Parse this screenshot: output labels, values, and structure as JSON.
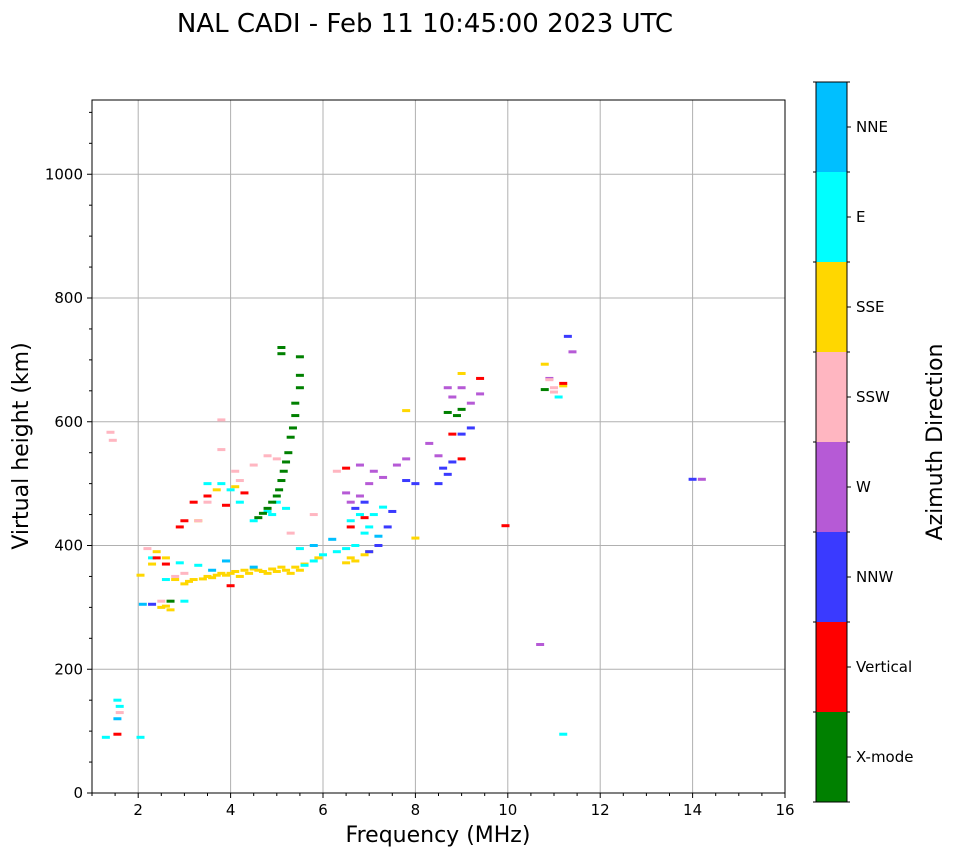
{
  "chart_data": {
    "type": "scatter",
    "title": "NAL CADI - Feb 11 10:45:00 2023 UTC",
    "xlabel": "Frequency (MHz)",
    "ylabel": "Virtual height (km)",
    "xlim": [
      1,
      16
    ],
    "ylim": [
      0,
      1120
    ],
    "xticks": [
      2,
      4,
      6,
      8,
      10,
      12,
      14,
      16
    ],
    "yticks": [
      0,
      200,
      400,
      600,
      800,
      1000
    ],
    "grid": true,
    "colorbar": {
      "title": "Azimuth Direction",
      "categories": [
        {
          "name": "X-mode",
          "color": "#008000"
        },
        {
          "name": "Vertical",
          "color": "#ff0000"
        },
        {
          "name": "NNW",
          "color": "#3a3aff"
        },
        {
          "name": "W",
          "color": "#b65ad6"
        },
        {
          "name": "SSW",
          "color": "#ffb6c1"
        },
        {
          "name": "SSE",
          "color": "#ffd700"
        },
        {
          "name": "E",
          "color": "#00ffff"
        },
        {
          "name": "NNE",
          "color": "#00bfff"
        }
      ]
    },
    "series": [
      {
        "name": "SSE",
        "points": [
          [
            2.05,
            352
          ],
          [
            2.3,
            370
          ],
          [
            2.5,
            300
          ],
          [
            2.6,
            302
          ],
          [
            2.7,
            296
          ],
          [
            2.8,
            345
          ],
          [
            3.0,
            338
          ],
          [
            3.1,
            342
          ],
          [
            3.2,
            345
          ],
          [
            3.4,
            346
          ],
          [
            3.5,
            350
          ],
          [
            3.6,
            348
          ],
          [
            3.7,
            352
          ],
          [
            3.8,
            355
          ],
          [
            3.9,
            352
          ],
          [
            4.0,
            355
          ],
          [
            4.1,
            358
          ],
          [
            4.2,
            350
          ],
          [
            4.3,
            360
          ],
          [
            4.4,
            355
          ],
          [
            4.5,
            362
          ],
          [
            4.6,
            360
          ],
          [
            4.7,
            358
          ],
          [
            4.8,
            355
          ],
          [
            4.9,
            362
          ],
          [
            5.0,
            358
          ],
          [
            5.1,
            365
          ],
          [
            5.2,
            360
          ],
          [
            5.3,
            355
          ],
          [
            5.4,
            365
          ],
          [
            5.5,
            360
          ],
          [
            5.6,
            370
          ],
          [
            5.9,
            380
          ],
          [
            6.5,
            372
          ],
          [
            6.6,
            380
          ],
          [
            6.7,
            375
          ],
          [
            6.9,
            385
          ],
          [
            7.0,
            390
          ],
          [
            8.0,
            412
          ],
          [
            7.8,
            618
          ],
          [
            9.0,
            678
          ],
          [
            10.8,
            693
          ],
          [
            11.2,
            658
          ],
          [
            3.7,
            490
          ],
          [
            4.1,
            495
          ],
          [
            2.6,
            380
          ],
          [
            2.4,
            390
          ],
          [
            3.3,
            440
          ]
        ]
      },
      {
        "name": "E",
        "points": [
          [
            1.55,
            150
          ],
          [
            1.6,
            140
          ],
          [
            2.05,
            90
          ],
          [
            1.3,
            90
          ],
          [
            2.3,
            380
          ],
          [
            2.6,
            345
          ],
          [
            2.9,
            372
          ],
          [
            3.0,
            310
          ],
          [
            3.3,
            368
          ],
          [
            3.5,
            500
          ],
          [
            4.2,
            470
          ],
          [
            4.5,
            440
          ],
          [
            4.8,
            455
          ],
          [
            5.0,
            470
          ],
          [
            5.5,
            395
          ],
          [
            5.6,
            368
          ],
          [
            5.8,
            375
          ],
          [
            6.0,
            385
          ],
          [
            6.3,
            390
          ],
          [
            6.5,
            395
          ],
          [
            6.7,
            400
          ],
          [
            6.9,
            420
          ],
          [
            7.0,
            430
          ],
          [
            7.1,
            450
          ],
          [
            7.3,
            462
          ],
          [
            6.8,
            450
          ],
          [
            6.6,
            440
          ],
          [
            11.1,
            640
          ],
          [
            11.2,
            95
          ],
          [
            4.9,
            450
          ],
          [
            5.2,
            460
          ],
          [
            3.8,
            500
          ],
          [
            4.0,
            490
          ]
        ]
      },
      {
        "name": "X-mode",
        "points": [
          [
            5.1,
            720
          ],
          [
            5.1,
            710
          ],
          [
            5.5,
            705
          ],
          [
            5.5,
            675
          ],
          [
            5.5,
            655
          ],
          [
            5.4,
            630
          ],
          [
            5.4,
            610
          ],
          [
            5.35,
            590
          ],
          [
            5.3,
            575
          ],
          [
            5.25,
            550
          ],
          [
            5.2,
            535
          ],
          [
            5.15,
            520
          ],
          [
            5.1,
            505
          ],
          [
            5.05,
            490
          ],
          [
            5.0,
            480
          ],
          [
            4.9,
            470
          ],
          [
            4.8,
            460
          ],
          [
            4.7,
            452
          ],
          [
            4.6,
            445
          ],
          [
            8.9,
            610
          ],
          [
            9.0,
            620
          ],
          [
            8.7,
            615
          ],
          [
            10.8,
            652
          ],
          [
            2.7,
            310
          ]
        ]
      },
      {
        "name": "Vertical",
        "points": [
          [
            1.55,
            95
          ],
          [
            2.4,
            380
          ],
          [
            2.6,
            370
          ],
          [
            2.9,
            430
          ],
          [
            3.2,
            470
          ],
          [
            3.5,
            480
          ],
          [
            3.9,
            465
          ],
          [
            4.0,
            335
          ],
          [
            9.95,
            432
          ],
          [
            11.2,
            662
          ],
          [
            9.4,
            670
          ],
          [
            9.0,
            540
          ],
          [
            8.8,
            580
          ],
          [
            6.6,
            430
          ],
          [
            6.9,
            445
          ],
          [
            6.5,
            525
          ],
          [
            4.3,
            485
          ],
          [
            3.0,
            440
          ]
        ]
      },
      {
        "name": "NNW",
        "points": [
          [
            2.3,
            305
          ],
          [
            6.7,
            460
          ],
          [
            6.9,
            470
          ],
          [
            7.0,
            390
          ],
          [
            7.2,
            400
          ],
          [
            7.4,
            430
          ],
          [
            7.5,
            455
          ],
          [
            7.8,
            505
          ],
          [
            8.0,
            500
          ],
          [
            8.5,
            500
          ],
          [
            8.6,
            525
          ],
          [
            8.7,
            515
          ],
          [
            8.8,
            535
          ],
          [
            9.0,
            580
          ],
          [
            9.2,
            590
          ],
          [
            14.0,
            507
          ],
          [
            11.3,
            738
          ]
        ]
      },
      {
        "name": "W",
        "points": [
          [
            6.5,
            485
          ],
          [
            6.6,
            470
          ],
          [
            6.8,
            480
          ],
          [
            7.0,
            500
          ],
          [
            7.1,
            520
          ],
          [
            7.3,
            510
          ],
          [
            7.6,
            530
          ],
          [
            7.8,
            540
          ],
          [
            8.3,
            565
          ],
          [
            8.5,
            545
          ],
          [
            8.7,
            655
          ],
          [
            8.8,
            640
          ],
          [
            9.0,
            655
          ],
          [
            9.2,
            630
          ],
          [
            9.4,
            645
          ],
          [
            10.7,
            240
          ],
          [
            11.4,
            713
          ],
          [
            14.2,
            507
          ],
          [
            10.9,
            670
          ],
          [
            6.8,
            530
          ]
        ]
      },
      {
        "name": "SSW",
        "points": [
          [
            1.4,
            583
          ],
          [
            1.45,
            570
          ],
          [
            1.6,
            130
          ],
          [
            2.2,
            395
          ],
          [
            2.5,
            310
          ],
          [
            2.8,
            350
          ],
          [
            3.0,
            355
          ],
          [
            3.3,
            440
          ],
          [
            3.5,
            470
          ],
          [
            3.8,
            603
          ],
          [
            3.8,
            555
          ],
          [
            4.1,
            520
          ],
          [
            4.5,
            530
          ],
          [
            4.8,
            545
          ],
          [
            5.0,
            540
          ],
          [
            5.3,
            420
          ],
          [
            5.8,
            450
          ],
          [
            6.3,
            520
          ],
          [
            11.0,
            655
          ],
          [
            11.0,
            648
          ],
          [
            10.9,
            668
          ],
          [
            4.2,
            505
          ]
        ]
      },
      {
        "name": "NNE",
        "points": [
          [
            1.55,
            120
          ],
          [
            2.1,
            305
          ],
          [
            3.6,
            360
          ],
          [
            3.9,
            375
          ],
          [
            4.5,
            365
          ],
          [
            5.8,
            400
          ],
          [
            6.2,
            410
          ],
          [
            7.2,
            415
          ]
        ]
      }
    ]
  }
}
